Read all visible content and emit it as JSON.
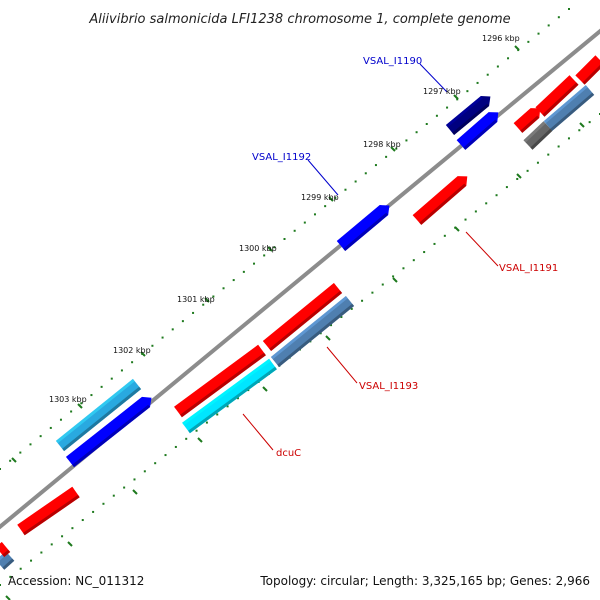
{
  "title": "Aliivibrio salmonicida LFI1238 chromosome 1, complete genome",
  "footer": {
    "accession": "Accession: NC_011312",
    "summary": "Topology: circular; Length: 3,325,165 bp; Genes: 2,966"
  },
  "tick_labels": [
    "1296 kbp",
    "1297 kbp",
    "1298 kbp",
    "1299 kbp",
    "1300 kbp",
    "1301 kbp",
    "1302 kbp",
    "1303 kbp"
  ],
  "gene_labels": [
    {
      "id": "VSAL_I1190",
      "text": "VSAL_I1190",
      "color": "#0000cc"
    },
    {
      "id": "VSAL_I1192",
      "text": "VSAL_I1192",
      "color": "#0000cc"
    },
    {
      "id": "VSAL_I1191",
      "text": "VSAL_I1191",
      "color": "#cc0000"
    },
    {
      "id": "VSAL_I1193",
      "text": "VSAL_I1193",
      "color": "#cc0000"
    },
    {
      "id": "dcuC",
      "text": "dcuC",
      "color": "#cc0000"
    }
  ],
  "colors": {
    "backbone": "#8c8c8c",
    "dots": "#1e7a1e",
    "cds_forward": "#ff0000",
    "cds_reverse": "#0000ff",
    "navy": "#000080",
    "steelblue": "#4f7fb0",
    "cyan": "#00e6ff",
    "skyblue": "#29a9e0",
    "gray": "#666666"
  }
}
